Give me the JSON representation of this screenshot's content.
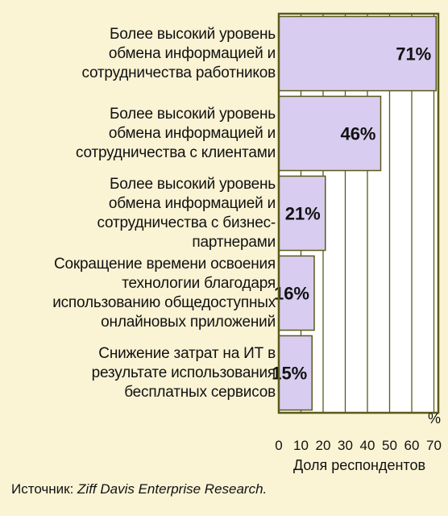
{
  "chart_data": {
    "type": "bar",
    "orientation": "horizontal",
    "categories": [
      [
        "Более высокий уровень",
        "обмена информацией и",
        "сотрудничества работников"
      ],
      [
        "Более высокий уровень",
        "обмена информацией и",
        "сотрудничества с клиентами"
      ],
      [
        "Более высокий уровень",
        "обмена информацией и",
        "сотрудничества с бизнес-",
        "партнерами"
      ],
      [
        "Сокращение времени освоения",
        "технологии благодаря",
        "использованию общедоступных",
        "онлайновых приложений"
      ],
      [
        "Снижение затрат на ИТ в",
        "результате использования",
        "бесплатных сервисов"
      ]
    ],
    "values": [
      71,
      46,
      21,
      16,
      15
    ],
    "value_labels": [
      "71%",
      "46%",
      "21%",
      "16%",
      "15%"
    ],
    "xlabel": "Доля респондентов",
    "x_unit": "%",
    "xlim": [
      0,
      72
    ],
    "xticks": [
      0,
      10,
      20,
      30,
      40,
      50,
      60,
      70
    ],
    "grid": true,
    "colors": {
      "background": "#faf3d4",
      "plot_background": "#ffffff",
      "bar_fill": "#d8cdf0",
      "frame": "#5a5a1a"
    }
  },
  "footer": {
    "prefix": "Источник: ",
    "source": "Ziff Davis Enterprise Research."
  }
}
